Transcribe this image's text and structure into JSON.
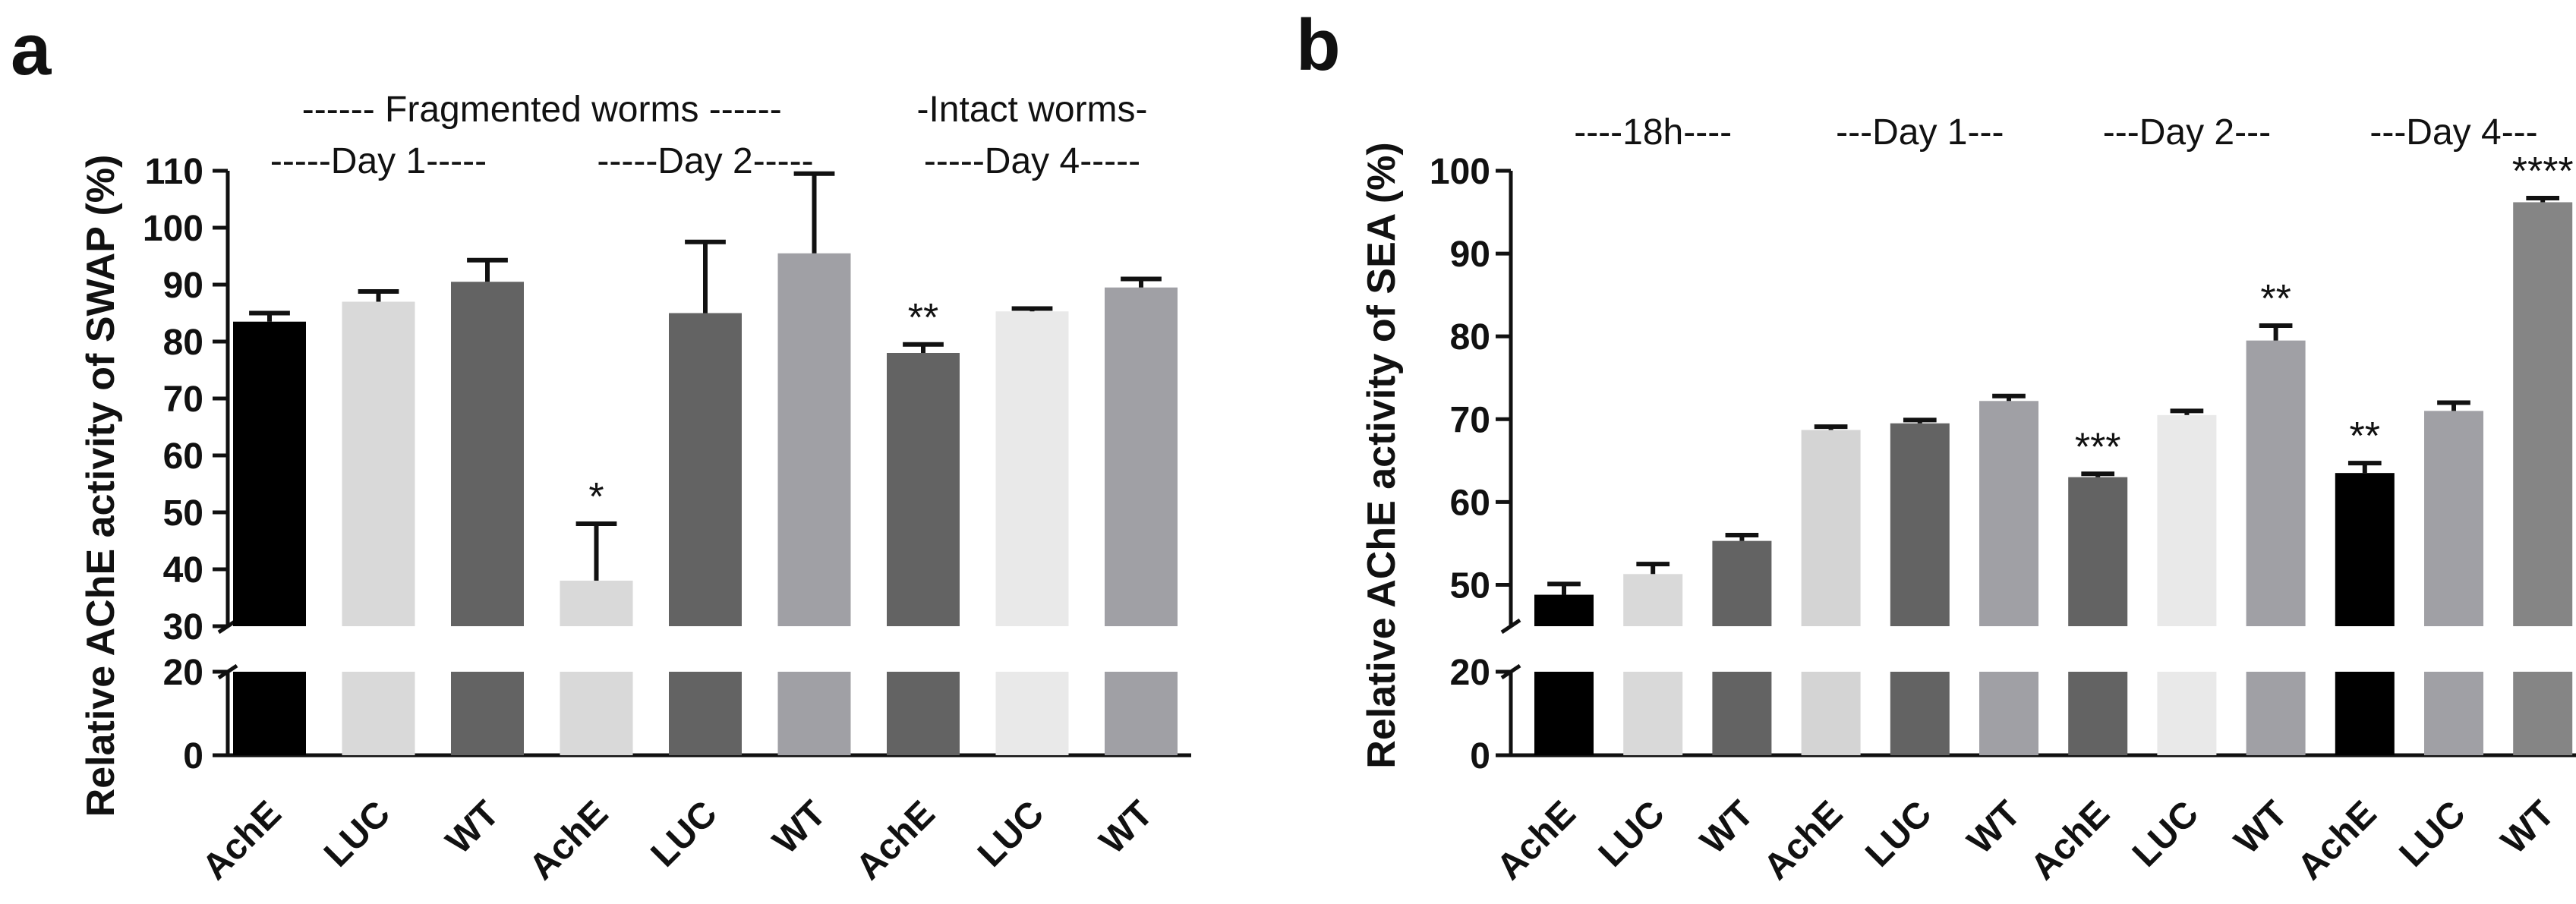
{
  "chart_data": [
    {
      "panel": "a",
      "type": "bar",
      "ylabel": "Relative AChE activity of SWAP (%)",
      "y_ticks_top": [
        30,
        40,
        50,
        60,
        70,
        80,
        90,
        100,
        110
      ],
      "y_ticks_bottom": [
        0,
        20
      ],
      "axis_break": [
        20,
        30
      ],
      "headers": [
        {
          "text": "------ Fragmented worms ------",
          "span": [
            0,
            5
          ]
        },
        {
          "text": "-Intact worms-",
          "span": [
            6,
            8
          ]
        }
      ],
      "groups": [
        {
          "text": "-----Day 1-----",
          "span": [
            0,
            2
          ]
        },
        {
          "text": "-----Day 2-----",
          "span": [
            3,
            5
          ]
        },
        {
          "text": "-----Day 4-----",
          "span": [
            6,
            8
          ]
        }
      ],
      "categories": [
        "AchE",
        "LUC",
        "WT",
        "AchE",
        "LUC",
        "WT",
        "AchE",
        "LUC",
        "WT"
      ],
      "values": [
        83.5,
        87,
        90.5,
        38,
        85,
        95.5,
        78,
        85.3,
        89.5
      ],
      "errors": [
        1.5,
        1.8,
        3.8,
        10,
        12.5,
        14,
        1.5,
        0.5,
        1.5
      ],
      "significance": [
        "",
        "",
        "",
        "*",
        "",
        "",
        "**",
        "",
        ""
      ],
      "colors": [
        "#000000",
        "#d9d9d9",
        "#636363",
        "#d9d9d9",
        "#636363",
        "#a0a0a5",
        "#636363",
        "#e9e9e9",
        "#a0a0a5"
      ]
    },
    {
      "panel": "b",
      "type": "bar",
      "ylabel": "Relative AChE activity of SEA (%)",
      "y_ticks_top": [
        50,
        60,
        70,
        80,
        90,
        100
      ],
      "y_ticks_bottom": [
        0,
        20
      ],
      "axis_break": [
        20,
        45
      ],
      "groups": [
        {
          "text": "----18h----",
          "span": [
            0,
            2
          ]
        },
        {
          "text": "---Day 1---",
          "span": [
            3,
            5
          ]
        },
        {
          "text": "---Day 2---",
          "span": [
            6,
            8
          ]
        },
        {
          "text": "---Day 4---",
          "span": [
            9,
            11
          ]
        }
      ],
      "categories": [
        "AchE",
        "LUC",
        "WT",
        "AchE",
        "LUC",
        "WT",
        "AchE",
        "LUC",
        "WT",
        "AchE",
        "LUC",
        "WT"
      ],
      "values": [
        48.8,
        51.3,
        55.3,
        68.7,
        69.5,
        72.2,
        63,
        70.5,
        79.5,
        63.5,
        71,
        96.2
      ],
      "errors": [
        1.3,
        1.2,
        0.7,
        0.4,
        0.4,
        0.6,
        0.4,
        0.5,
        1.8,
        1.2,
        1.0,
        0.5
      ],
      "significance": [
        "",
        "",
        "",
        "",
        "",
        "",
        "***",
        "",
        "**",
        "**",
        "",
        "****"
      ],
      "colors": [
        "#000000",
        "#d9d9d9",
        "#636363",
        "#d4d4d4",
        "#636363",
        "#a0a0a5",
        "#636363",
        "#e9e9e9",
        "#a0a0a5",
        "#000000",
        "#a0a0a5",
        "#858585"
      ]
    }
  ]
}
